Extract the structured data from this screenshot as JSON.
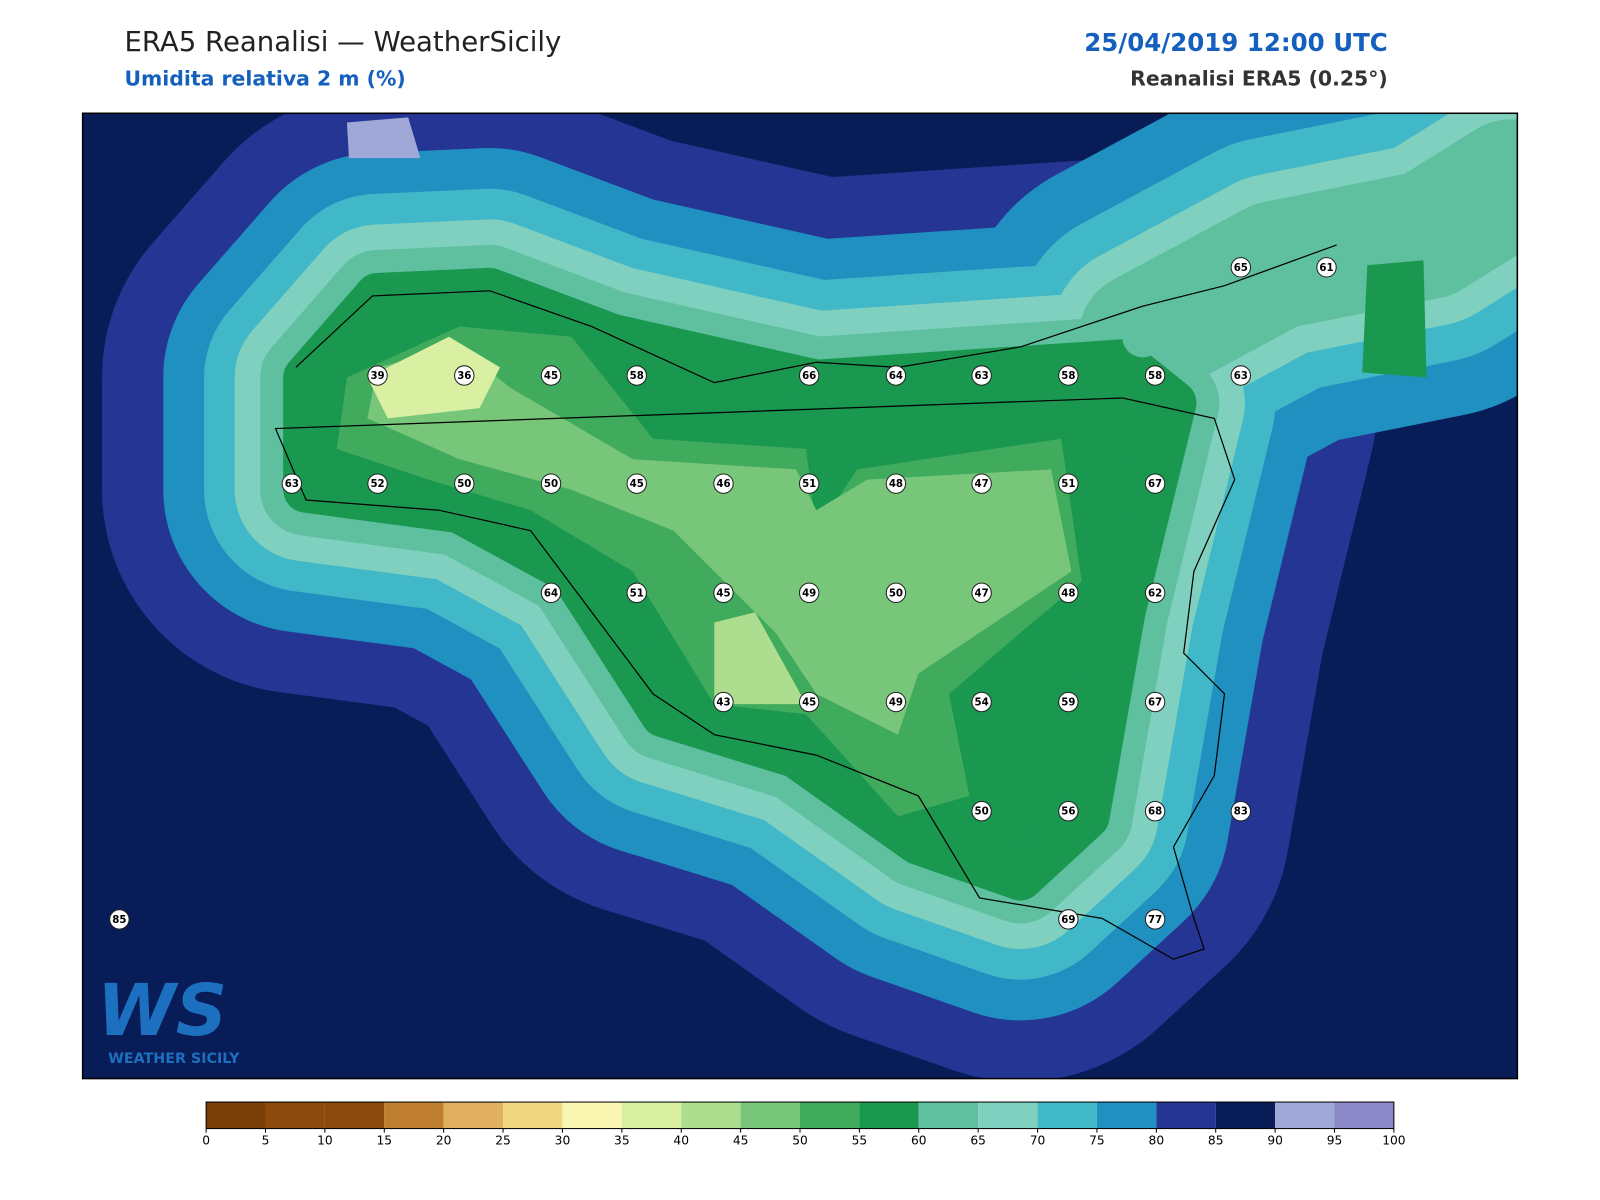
{
  "header": {
    "title": "ERA5 Reanalisi — WeatherSicily",
    "subtitle": "Umidita relativa 2 m (%)",
    "datetime": "25/04/2019 12:00 UTC",
    "source": "Reanalisi ERA5 (0.25°)"
  },
  "map": {
    "stations": [
      39,
      36,
      45,
      58,
      66,
      64,
      63,
      58,
      58,
      63,
      65,
      61,
      63,
      52,
      50,
      50,
      45,
      46,
      51,
      48,
      47,
      51,
      67,
      64,
      51,
      45,
      49,
      50,
      47,
      48,
      62,
      43,
      45,
      49,
      54,
      59,
      67,
      50,
      56,
      68,
      83,
      69,
      77,
      85
    ]
  },
  "logo": {
    "mark": "WS",
    "text": "WEATHER SICILY"
  },
  "colorbar": {
    "ticks": [
      0,
      5,
      10,
      15,
      20,
      25,
      30,
      35,
      40,
      45,
      50,
      55,
      60,
      65,
      70,
      75,
      80,
      85,
      90,
      95,
      100
    ],
    "colors": [
      "#7a3e08",
      "#8c4a0c",
      "#8c4a0c",
      "#c07f30",
      "#e0b060",
      "#f0d880",
      "#f8f6b0",
      "#d9f0a3",
      "#addd8e",
      "#78c679",
      "#41ab5d",
      "#1a9850",
      "#5fc0a0",
      "#80d0c0",
      "#40b8c8",
      "#2090c0",
      "#253594",
      "#081d58",
      "#a0a8d8",
      "#8c88c8"
    ]
  }
}
